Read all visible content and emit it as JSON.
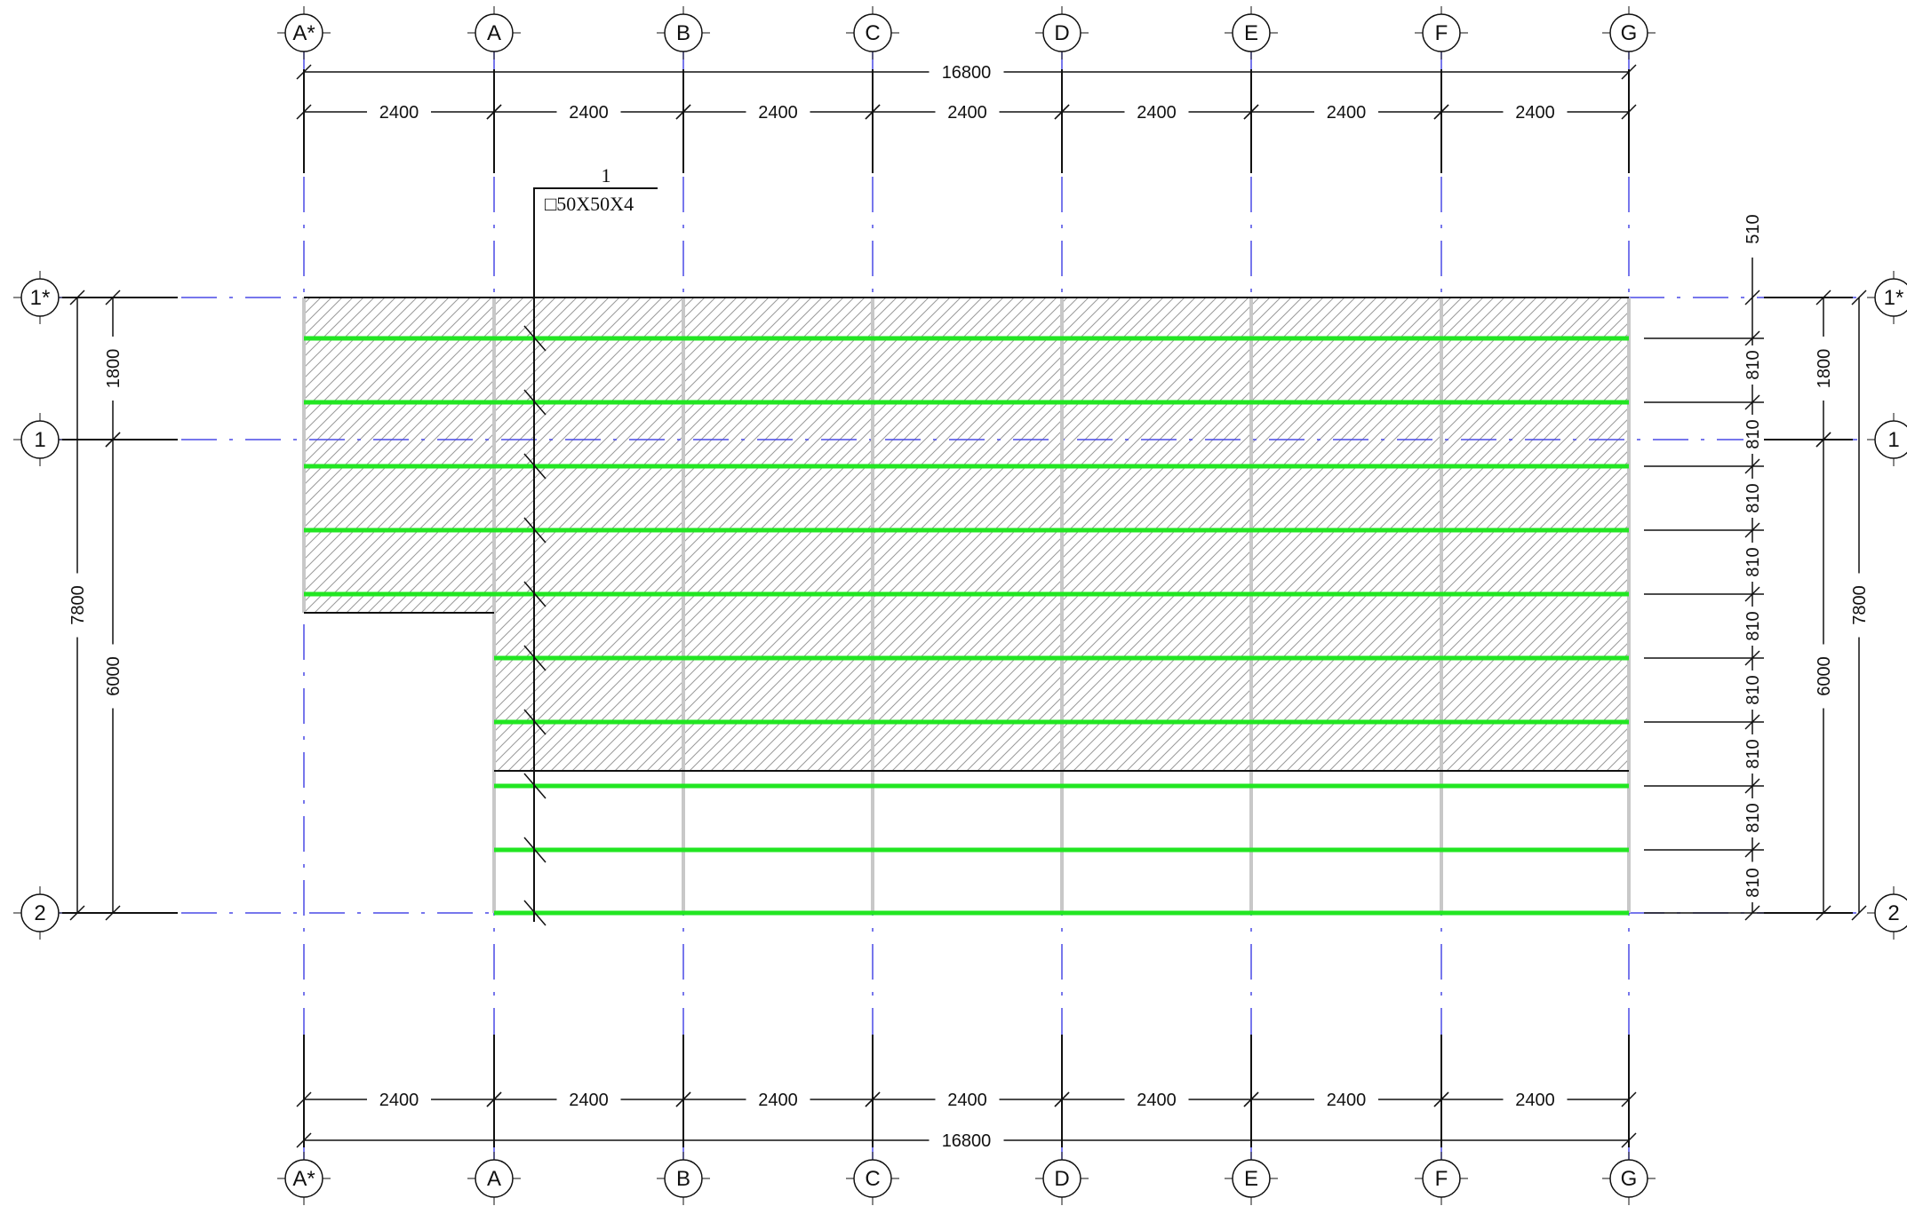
{
  "grid": {
    "columns": [
      "A*",
      "A",
      "B",
      "C",
      "D",
      "E",
      "F",
      "G"
    ],
    "rows": [
      "1*",
      "1",
      "2"
    ]
  },
  "dimensions": {
    "bay": "2400",
    "overall_x": "16800",
    "left_outer": "7800",
    "left_upper": "1800",
    "left_lower": "6000",
    "right_outer": "7800",
    "right_upper": "1800",
    "right_lower": "6000",
    "right_top_offset": "510",
    "right_spacing": "810"
  },
  "member_tag": {
    "mark": "1",
    "section": "□50X50X4"
  },
  "colors": {
    "axis": "#4a4ae6",
    "member": "#22e622",
    "hatch": "#9a9a9a",
    "column_line": "#c8c8c8",
    "ink": "#111111"
  }
}
